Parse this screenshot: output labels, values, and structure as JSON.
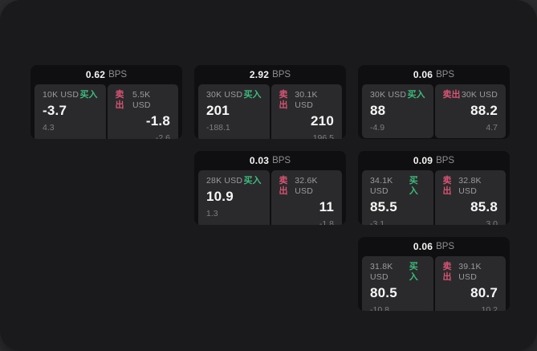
{
  "labels": {
    "bps_unit": "BPS",
    "buy": "买入",
    "sell": "卖出"
  },
  "colors": {
    "outer_background": "#2c2c2e",
    "panel_background": "#1a1a1c",
    "card_background": "#0f0f11",
    "tile_background": "#2a2a2c",
    "text_primary": "#f7f7f7",
    "text_secondary": "#9b9b9d",
    "buy_green": "#3dbb7c",
    "sell_red": "#d65473"
  },
  "cards": [
    {
      "row": 1,
      "col": 1,
      "bps": "0.62",
      "buy": {
        "amount": "10K USD",
        "price": "-3.7",
        "change": "4.3"
      },
      "sell": {
        "amount": "5.5K USD",
        "price": "-1.8",
        "change": "-2.6"
      }
    },
    {
      "row": 1,
      "col": 2,
      "bps": "2.92",
      "buy": {
        "amount": "30K USD",
        "price": "201",
        "change": "-188.1"
      },
      "sell": {
        "amount": "30.1K USD",
        "price": "210",
        "change": "196.5"
      }
    },
    {
      "row": 1,
      "col": 3,
      "bps": "0.06",
      "buy": {
        "amount": "30K USD",
        "price": "88",
        "change": "-4.9"
      },
      "sell": {
        "amount": "30K USD",
        "price": "88.2",
        "change": "4.7"
      }
    },
    {
      "row": 2,
      "col": 2,
      "bps": "0.03",
      "buy": {
        "amount": "28K USD",
        "price": "10.9",
        "change": "1.3"
      },
      "sell": {
        "amount": "32.6K USD",
        "price": "11",
        "change": "-1.8"
      }
    },
    {
      "row": 2,
      "col": 3,
      "bps": "0.09",
      "buy": {
        "amount": "34.1K USD",
        "price": "85.5",
        "change": "-3.1"
      },
      "sell": {
        "amount": "32.8K USD",
        "price": "85.8",
        "change": "3.0"
      }
    },
    {
      "row": 3,
      "col": 3,
      "bps": "0.06",
      "buy": {
        "amount": "31.8K USD",
        "price": "80.5",
        "change": "-10.8"
      },
      "sell": {
        "amount": "39.1K USD",
        "price": "80.7",
        "change": "10.2"
      }
    }
  ]
}
